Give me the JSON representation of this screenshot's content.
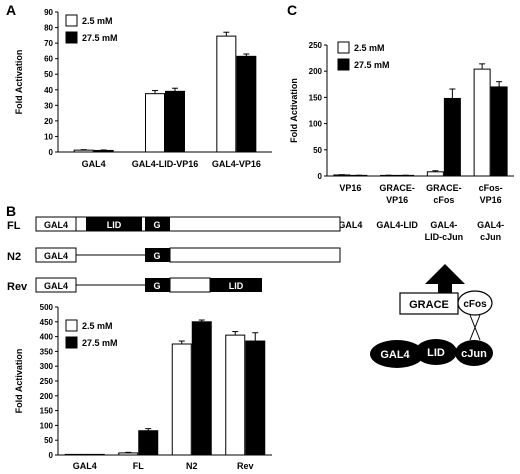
{
  "panels": {
    "a": {
      "letter": "A"
    },
    "b": {
      "letter": "B"
    },
    "c": {
      "letter": "C"
    }
  },
  "constructs": [
    {
      "row_label": "FL",
      "segments": [
        "GAL4",
        "LID",
        "G"
      ]
    },
    {
      "row_label": "N2",
      "segments": [
        "GAL4",
        "G"
      ]
    },
    {
      "row_label": "Rev",
      "segments": [
        "GAL4",
        "G",
        "LID"
      ]
    }
  ],
  "diagram": {
    "grace": "GRACE",
    "cfos": "cFos",
    "gal4": "GAL4",
    "lid": "LID",
    "cjun": "cJun"
  },
  "colors": {
    "series_2_5": "#ffffff",
    "series_27_5": "#000000",
    "stroke": "#000000"
  },
  "chart_data": [
    {
      "id": "A",
      "type": "bar",
      "ylabel": "Fold Activation",
      "ylim": [
        0,
        90
      ],
      "yticks": [
        0,
        10,
        20,
        30,
        40,
        50,
        60,
        70,
        80,
        90
      ],
      "legend_position": "top-left",
      "categories": [
        "GAL4",
        "GAL4-LID-VP16",
        "GAL4-VP16"
      ],
      "series": [
        {
          "name": "2.5 mM",
          "values": [
            1.2,
            37.5,
            74.5
          ],
          "errors": [
            0.3,
            2.0,
            2.5
          ]
        },
        {
          "name": "27.5 mM",
          "values": [
            1.0,
            39.0,
            61.5
          ],
          "errors": [
            0.3,
            2.0,
            1.5
          ]
        }
      ]
    },
    {
      "id": "B",
      "type": "bar",
      "ylabel": "Fold Activation",
      "ylim": [
        0,
        500
      ],
      "yticks": [
        0,
        50,
        100,
        150,
        200,
        250,
        300,
        350,
        400,
        450,
        500
      ],
      "legend_position": "top-left",
      "categories": [
        "GAL4",
        "FL",
        "N2",
        "Rev"
      ],
      "series": [
        {
          "name": "2.5 mM",
          "values": [
            1,
            7,
            375,
            405
          ],
          "errors": [
            0.5,
            2,
            10,
            12
          ]
        },
        {
          "name": "27.5 mM",
          "values": [
            1,
            82,
            450,
            385
          ],
          "errors": [
            0.5,
            7,
            6,
            28
          ]
        }
      ]
    },
    {
      "id": "C",
      "type": "bar",
      "ylabel": "Fold Activation",
      "ylim": [
        0,
        250
      ],
      "yticks": [
        0,
        50,
        100,
        150,
        200,
        250
      ],
      "legend_position": "top-left",
      "categories": [
        [
          "VP16"
        ],
        [
          "GRACE-",
          "VP16"
        ],
        [
          "GRACE-",
          "cFos"
        ],
        [
          "cFos-",
          "VP16"
        ]
      ],
      "sublabels": [
        [
          "GAL4"
        ],
        [
          "GAL4-LID"
        ],
        [
          "GAL4-",
          "LID-cJun"
        ],
        [
          "GAL4-",
          "cJun"
        ]
      ],
      "series": [
        {
          "name": "2.5 mM",
          "values": [
            2,
            1,
            8,
            204
          ],
          "errors": [
            0.5,
            0.5,
            2,
            10
          ]
        },
        {
          "name": "27.5 mM",
          "values": [
            1,
            1,
            148,
            170
          ],
          "errors": [
            0.5,
            0.5,
            18,
            10
          ]
        }
      ]
    }
  ]
}
